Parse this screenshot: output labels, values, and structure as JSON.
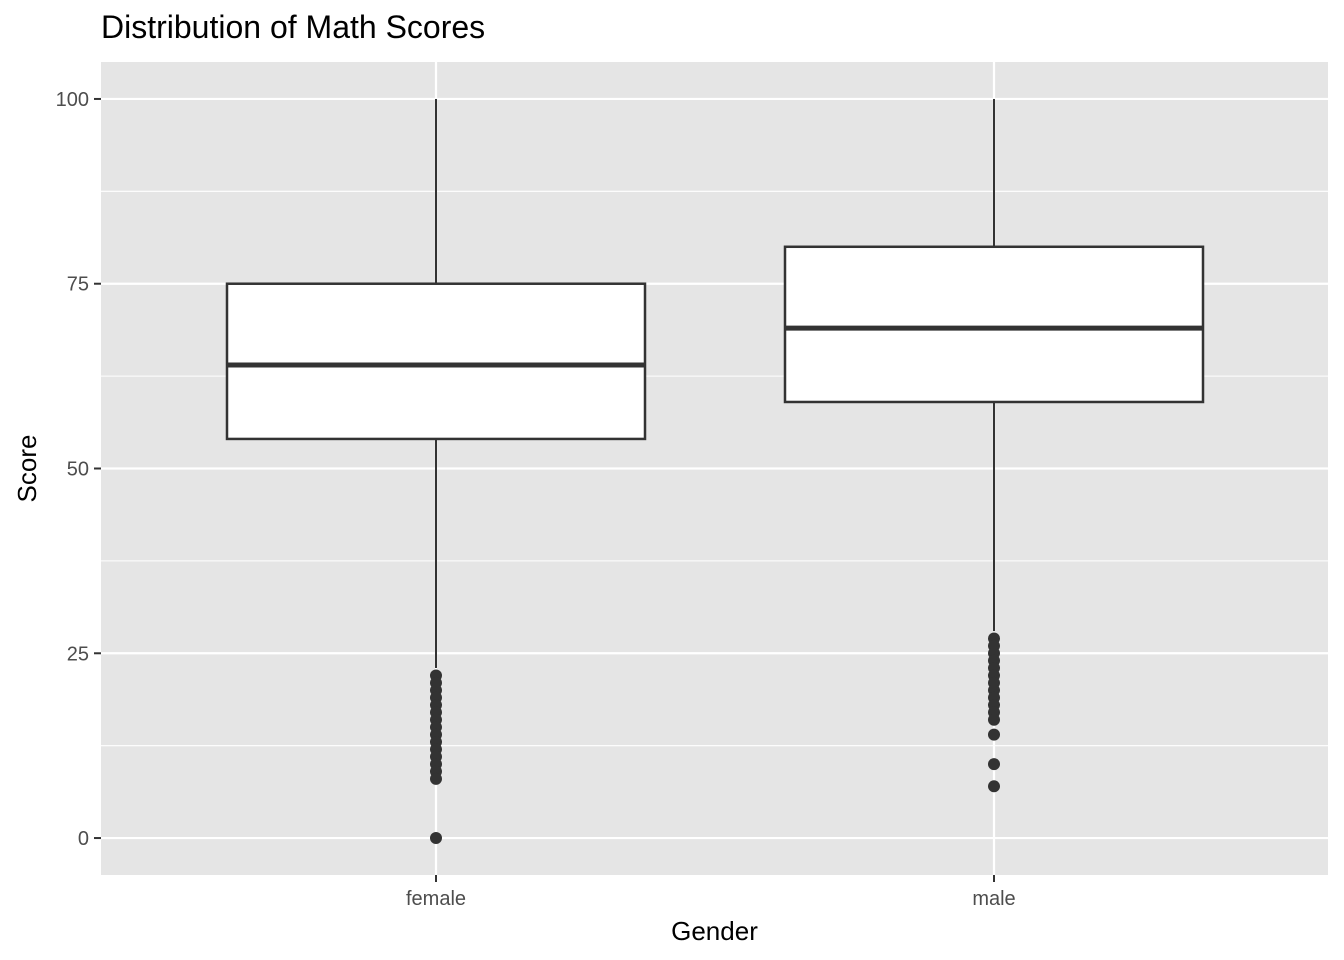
{
  "chart_data": {
    "type": "boxplot",
    "title": "Distribution of Math Scores",
    "xlabel": "Gender",
    "ylabel": "Score",
    "categories": [
      "female",
      "male"
    ],
    "ylim": [
      -5,
      105
    ],
    "yticks": [
      0,
      25,
      50,
      75,
      100
    ],
    "grid": true,
    "legend": "none",
    "boxes": [
      {
        "category": "female",
        "whisker_low": 23,
        "q1": 54,
        "median": 64,
        "q3": 75,
        "whisker_high": 100,
        "outliers": [
          22,
          21,
          20,
          19,
          18,
          17,
          16,
          15,
          14,
          13,
          12,
          11,
          10,
          9,
          8,
          0
        ]
      },
      {
        "category": "male",
        "whisker_low": 28,
        "q1": 59,
        "median": 69,
        "q3": 80,
        "whisker_high": 100,
        "outliers": [
          27,
          26,
          25,
          24,
          23,
          22,
          21,
          20,
          19,
          18,
          17,
          16,
          14,
          10,
          7
        ]
      }
    ],
    "colors": {
      "panel_background": "#e5e5e5",
      "grid_line": "#ffffff",
      "box_fill": "#ffffff",
      "box_stroke": "#333333",
      "outlier": "#333333",
      "tick_text": "#4d4d4d"
    }
  }
}
